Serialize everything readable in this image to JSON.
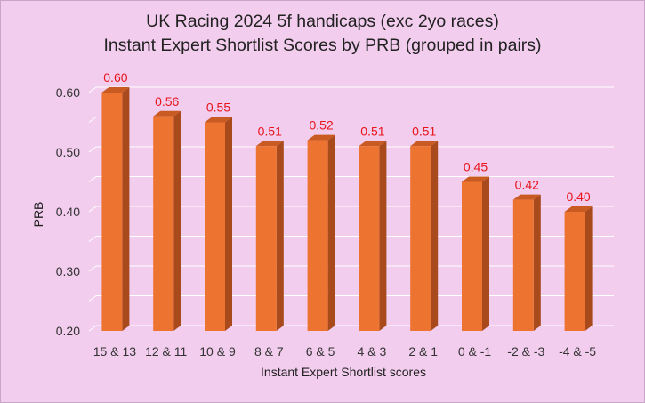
{
  "chart_data": {
    "type": "bar",
    "title": "UK Racing 2024 5f handicaps (exc 2yo races)",
    "subtitle": "Instant Expert Shortlist Scores by PRB (grouped in pairs)",
    "xlabel": "Instant Expert Shortlist scores",
    "ylabel": "PRB",
    "categories": [
      "15 & 13",
      "12 & 11",
      "10 & 9",
      "8 & 7",
      "6 & 5",
      "4 & 3",
      "2 & 1",
      "0 & -1",
      "-2 & -3",
      "-4 & -5"
    ],
    "values": [
      0.6,
      0.56,
      0.55,
      0.51,
      0.52,
      0.51,
      0.51,
      0.45,
      0.42,
      0.4
    ],
    "value_labels": [
      "0.60",
      "0.56",
      "0.55",
      "0.51",
      "0.52",
      "0.51",
      "0.51",
      "0.45",
      "0.42",
      "0.40"
    ],
    "ylim": [
      0.2,
      0.6
    ],
    "yticks": [
      0.2,
      0.3,
      0.4,
      0.5,
      0.6
    ],
    "ytick_labels": [
      "0.20",
      "0.30",
      "0.40",
      "0.50",
      "0.60"
    ],
    "grid": true,
    "legend": "none",
    "colors": {
      "bar_front": "#ed7331",
      "bar_side": "#a84a1c",
      "bar_top": "#c95a22",
      "data_label": "#e8141a",
      "gridline": "#ffffff",
      "background": "#f2cdee"
    }
  }
}
